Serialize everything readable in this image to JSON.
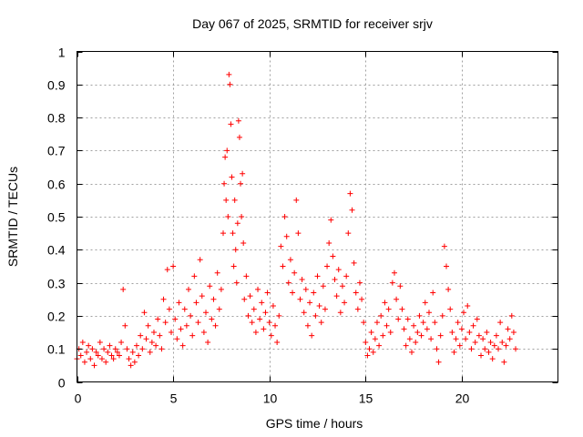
{
  "chart_data": {
    "type": "scatter",
    "title": "Day 067 of 2025, SRMTID for receiver srjv",
    "xlabel": "GPS time / hours",
    "ylabel": "SRMTID / TECUs",
    "xlim": [
      0,
      25
    ],
    "ylim": [
      0,
      1
    ],
    "xticks": [
      0,
      5,
      10,
      15,
      20
    ],
    "xtick_labels": [
      "0",
      "5",
      "10",
      "15",
      "20"
    ],
    "yticks": [
      0,
      0.1,
      0.2,
      0.3,
      0.4,
      0.5,
      0.6,
      0.7,
      0.8,
      0.9,
      1
    ],
    "ytick_labels": [
      "0",
      "0.1",
      "0.2",
      "0.3",
      "0.4",
      "0.5",
      "0.6",
      "0.7",
      "0.8",
      "0.9",
      "1"
    ],
    "grid": true,
    "marker": "+",
    "color": "#ff0000",
    "series": [
      {
        "name": "SRMTID",
        "points": [
          [
            0.0,
            0.07
          ],
          [
            0.1,
            0.1
          ],
          [
            0.2,
            0.08
          ],
          [
            0.3,
            0.12
          ],
          [
            0.4,
            0.06
          ],
          [
            0.5,
            0.09
          ],
          [
            0.6,
            0.11
          ],
          [
            0.7,
            0.07
          ],
          [
            0.8,
            0.1
          ],
          [
            0.9,
            0.05
          ],
          [
            1.0,
            0.09
          ],
          [
            1.1,
            0.08
          ],
          [
            1.2,
            0.12
          ],
          [
            1.3,
            0.07
          ],
          [
            1.4,
            0.1
          ],
          [
            1.5,
            0.06
          ],
          [
            1.6,
            0.09
          ],
          [
            1.7,
            0.11
          ],
          [
            1.8,
            0.08
          ],
          [
            1.9,
            0.07
          ],
          [
            2.0,
            0.1
          ],
          [
            2.1,
            0.09
          ],
          [
            2.2,
            0.08
          ],
          [
            2.3,
            0.12
          ],
          [
            2.4,
            0.28
          ],
          [
            2.5,
            0.17
          ],
          [
            2.6,
            0.1
          ],
          [
            2.7,
            0.07
          ],
          [
            2.8,
            0.05
          ],
          [
            2.9,
            0.09
          ],
          [
            3.0,
            0.06
          ],
          [
            3.1,
            0.11
          ],
          [
            3.2,
            0.08
          ],
          [
            3.3,
            0.14
          ],
          [
            3.4,
            0.1
          ],
          [
            3.5,
            0.21
          ],
          [
            3.6,
            0.13
          ],
          [
            3.7,
            0.17
          ],
          [
            3.8,
            0.09
          ],
          [
            3.9,
            0.12
          ],
          [
            4.0,
            0.15
          ],
          [
            4.1,
            0.11
          ],
          [
            4.2,
            0.19
          ],
          [
            4.3,
            0.14
          ],
          [
            4.4,
            0.1
          ],
          [
            4.5,
            0.25
          ],
          [
            4.6,
            0.18
          ],
          [
            4.7,
            0.34
          ],
          [
            4.8,
            0.22
          ],
          [
            4.9,
            0.15
          ],
          [
            5.0,
            0.35
          ],
          [
            5.1,
            0.19
          ],
          [
            5.2,
            0.13
          ],
          [
            5.3,
            0.24
          ],
          [
            5.4,
            0.16
          ],
          [
            5.5,
            0.11
          ],
          [
            5.6,
            0.22
          ],
          [
            5.7,
            0.17
          ],
          [
            5.8,
            0.28
          ],
          [
            5.9,
            0.2
          ],
          [
            6.0,
            0.14
          ],
          [
            6.1,
            0.32
          ],
          [
            6.2,
            0.24
          ],
          [
            6.3,
            0.18
          ],
          [
            6.4,
            0.37
          ],
          [
            6.5,
            0.26
          ],
          [
            6.6,
            0.15
          ],
          [
            6.7,
            0.21
          ],
          [
            6.8,
            0.12
          ],
          [
            6.9,
            0.29
          ],
          [
            7.0,
            0.19
          ],
          [
            7.1,
            0.25
          ],
          [
            7.2,
            0.17
          ],
          [
            7.3,
            0.33
          ],
          [
            7.4,
            0.22
          ],
          [
            7.5,
            0.28
          ],
          [
            7.6,
            0.45
          ],
          [
            7.65,
            0.6
          ],
          [
            7.7,
            0.68
          ],
          [
            7.75,
            0.55
          ],
          [
            7.8,
            0.7
          ],
          [
            7.85,
            0.5
          ],
          [
            7.9,
            0.93
          ],
          [
            7.95,
            0.9
          ],
          [
            8.0,
            0.78
          ],
          [
            8.05,
            0.62
          ],
          [
            8.1,
            0.45
          ],
          [
            8.15,
            0.35
          ],
          [
            8.2,
            0.55
          ],
          [
            8.25,
            0.4
          ],
          [
            8.3,
            0.3
          ],
          [
            8.35,
            0.48
          ],
          [
            8.4,
            0.79
          ],
          [
            8.45,
            0.74
          ],
          [
            8.5,
            0.6
          ],
          [
            8.55,
            0.5
          ],
          [
            8.6,
            0.63
          ],
          [
            8.65,
            0.42
          ],
          [
            8.7,
            0.25
          ],
          [
            8.8,
            0.32
          ],
          [
            8.9,
            0.2
          ],
          [
            9.0,
            0.26
          ],
          [
            9.1,
            0.18
          ],
          [
            9.2,
            0.22
          ],
          [
            9.3,
            0.15
          ],
          [
            9.4,
            0.28
          ],
          [
            9.5,
            0.19
          ],
          [
            9.6,
            0.24
          ],
          [
            9.7,
            0.16
          ],
          [
            9.8,
            0.21
          ],
          [
            9.9,
            0.27
          ],
          [
            10.0,
            0.18
          ],
          [
            10.1,
            0.14
          ],
          [
            10.2,
            0.23
          ],
          [
            10.3,
            0.17
          ],
          [
            10.4,
            0.12
          ],
          [
            10.5,
            0.2
          ],
          [
            10.6,
            0.41
          ],
          [
            10.7,
            0.35
          ],
          [
            10.8,
            0.5
          ],
          [
            10.9,
            0.44
          ],
          [
            11.0,
            0.3
          ],
          [
            11.1,
            0.37
          ],
          [
            11.2,
            0.27
          ],
          [
            11.3,
            0.33
          ],
          [
            11.4,
            0.55
          ],
          [
            11.5,
            0.45
          ],
          [
            11.6,
            0.25
          ],
          [
            11.7,
            0.31
          ],
          [
            11.8,
            0.21
          ],
          [
            11.9,
            0.28
          ],
          [
            12.0,
            0.17
          ],
          [
            12.1,
            0.24
          ],
          [
            12.2,
            0.14
          ],
          [
            12.3,
            0.27
          ],
          [
            12.4,
            0.2
          ],
          [
            12.5,
            0.32
          ],
          [
            12.6,
            0.23
          ],
          [
            12.7,
            0.18
          ],
          [
            12.8,
            0.29
          ],
          [
            12.9,
            0.22
          ],
          [
            13.0,
            0.35
          ],
          [
            13.1,
            0.42
          ],
          [
            13.2,
            0.49
          ],
          [
            13.3,
            0.38
          ],
          [
            13.4,
            0.31
          ],
          [
            13.5,
            0.26
          ],
          [
            13.6,
            0.34
          ],
          [
            13.7,
            0.21
          ],
          [
            13.8,
            0.29
          ],
          [
            13.9,
            0.24
          ],
          [
            14.0,
            0.32
          ],
          [
            14.1,
            0.45
          ],
          [
            14.2,
            0.57
          ],
          [
            14.3,
            0.52
          ],
          [
            14.4,
            0.36
          ],
          [
            14.5,
            0.27
          ],
          [
            14.6,
            0.22
          ],
          [
            14.7,
            0.3
          ],
          [
            14.8,
            0.25
          ],
          [
            14.9,
            0.18
          ],
          [
            15.0,
            0.12
          ],
          [
            15.1,
            0.08
          ],
          [
            15.2,
            0.1
          ],
          [
            15.3,
            0.15
          ],
          [
            15.4,
            0.09
          ],
          [
            15.5,
            0.13
          ],
          [
            15.6,
            0.18
          ],
          [
            15.7,
            0.11
          ],
          [
            15.8,
            0.2
          ],
          [
            15.9,
            0.14
          ],
          [
            16.0,
            0.24
          ],
          [
            16.1,
            0.17
          ],
          [
            16.2,
            0.22
          ],
          [
            16.3,
            0.15
          ],
          [
            16.4,
            0.3
          ],
          [
            16.5,
            0.33
          ],
          [
            16.6,
            0.25
          ],
          [
            16.7,
            0.19
          ],
          [
            16.8,
            0.29
          ],
          [
            16.9,
            0.22
          ],
          [
            17.0,
            0.16
          ],
          [
            17.1,
            0.11
          ],
          [
            17.2,
            0.19
          ],
          [
            17.3,
            0.13
          ],
          [
            17.4,
            0.09
          ],
          [
            17.5,
            0.17
          ],
          [
            17.6,
            0.12
          ],
          [
            17.7,
            0.15
          ],
          [
            17.8,
            0.2
          ],
          [
            17.9,
            0.14
          ],
          [
            18.0,
            0.18
          ],
          [
            18.1,
            0.24
          ],
          [
            18.2,
            0.16
          ],
          [
            18.3,
            0.21
          ],
          [
            18.4,
            0.13
          ],
          [
            18.5,
            0.27
          ],
          [
            18.6,
            0.18
          ],
          [
            18.7,
            0.1
          ],
          [
            18.8,
            0.06
          ],
          [
            18.9,
            0.14
          ],
          [
            19.0,
            0.2
          ],
          [
            19.1,
            0.41
          ],
          [
            19.2,
            0.35
          ],
          [
            19.3,
            0.28
          ],
          [
            19.4,
            0.22
          ],
          [
            19.5,
            0.15
          ],
          [
            19.6,
            0.09
          ],
          [
            19.7,
            0.13
          ],
          [
            19.8,
            0.18
          ],
          [
            19.9,
            0.11
          ],
          [
            20.0,
            0.16
          ],
          [
            20.1,
            0.21
          ],
          [
            20.2,
            0.13
          ],
          [
            20.3,
            0.23
          ],
          [
            20.4,
            0.15
          ],
          [
            20.5,
            0.1
          ],
          [
            20.6,
            0.17
          ],
          [
            20.7,
            0.12
          ],
          [
            20.8,
            0.19
          ],
          [
            20.9,
            0.14
          ],
          [
            21.0,
            0.08
          ],
          [
            21.1,
            0.13
          ],
          [
            21.2,
            0.1
          ],
          [
            21.3,
            0.15
          ],
          [
            21.4,
            0.09
          ],
          [
            21.5,
            0.12
          ],
          [
            21.6,
            0.07
          ],
          [
            21.7,
            0.11
          ],
          [
            21.8,
            0.14
          ],
          [
            21.9,
            0.1
          ],
          [
            22.0,
            0.18
          ],
          [
            22.1,
            0.12
          ],
          [
            22.2,
            0.06
          ],
          [
            22.3,
            0.11
          ],
          [
            22.4,
            0.16
          ],
          [
            22.5,
            0.13
          ],
          [
            22.6,
            0.2
          ],
          [
            22.7,
            0.15
          ],
          [
            22.8,
            0.1
          ]
        ]
      }
    ]
  }
}
